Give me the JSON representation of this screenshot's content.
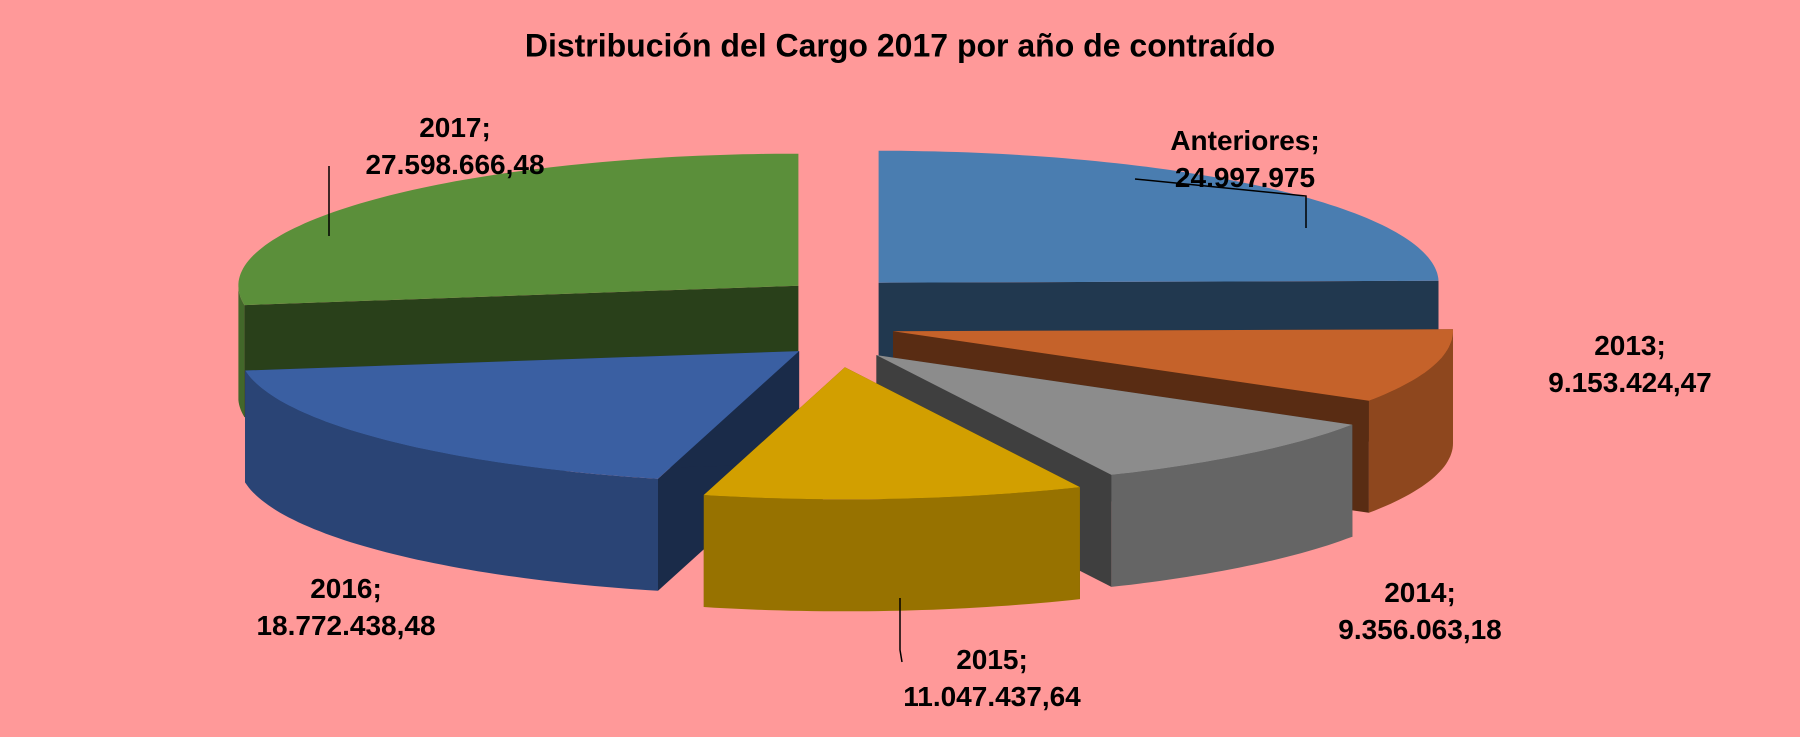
{
  "chart_data": {
    "type": "pie3d",
    "title": "Distribución del Cargo 2017 por año de contraído",
    "categories": [
      "Anteriores",
      "2013",
      "2014",
      "2015",
      "2016",
      "2017"
    ],
    "values": [
      24997975,
      9153424.47,
      9356063.18,
      11047437.64,
      18772438.48,
      27598666.48
    ],
    "value_labels": [
      "24.997.975",
      "9.153.424,47",
      "9.356.063,18",
      "11.047.437,64",
      "18.772.438,48",
      "27.598.666,48"
    ],
    "label_separator": ";",
    "colors": [
      "#4a7db0",
      "#c5622a",
      "#8c8c8c",
      "#d29f00",
      "#3a5fa2",
      "#5b8f3a"
    ]
  }
}
